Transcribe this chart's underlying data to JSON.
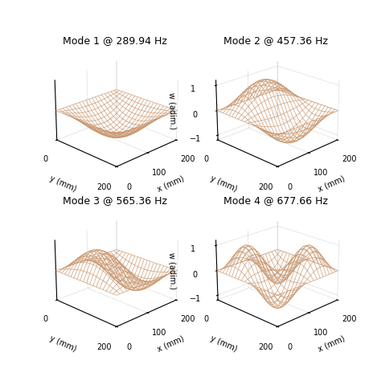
{
  "titles": [
    "Mode 1 @ 289.94 Hz",
    "Mode 2 @ 457.36 Hz",
    "Mode 3 @ 565.36 Hz",
    "Mode 4 @ 677.66 Hz"
  ],
  "wire_color": "#c8956c",
  "wire_alpha": 0.9,
  "wire_linewidth": 0.5,
  "x_max": 200,
  "y_max": 200,
  "xlabel": "x (mm)",
  "ylabel": "y (mm)",
  "zlabel": "w (adim.)",
  "title_fontsize": 9,
  "axis_fontsize": 7,
  "tick_fontsize": 7,
  "grid_color": "#aaaaaa",
  "background_color": "#ffffff",
  "n_grid": 20,
  "elev": 22,
  "azim": -135,
  "modes": [
    {
      "nx": 1,
      "ny": 1,
      "zlim": [
        -1.2,
        1.2
      ],
      "show_zlabel": false,
      "show_zticks": false,
      "invert": true
    },
    {
      "nx": 1,
      "ny": 2,
      "zlim": [
        -1.2,
        1.2
      ],
      "show_zlabel": true,
      "show_zticks": true,
      "invert": false
    },
    {
      "nx": 2,
      "ny": 1,
      "zlim": [
        -1.2,
        1.2
      ],
      "show_zlabel": false,
      "show_zticks": false,
      "invert": false
    },
    {
      "nx": 2,
      "ny": 2,
      "zlim": [
        -1.2,
        1.2
      ],
      "show_zlabel": true,
      "show_zticks": true,
      "invert": false
    }
  ]
}
